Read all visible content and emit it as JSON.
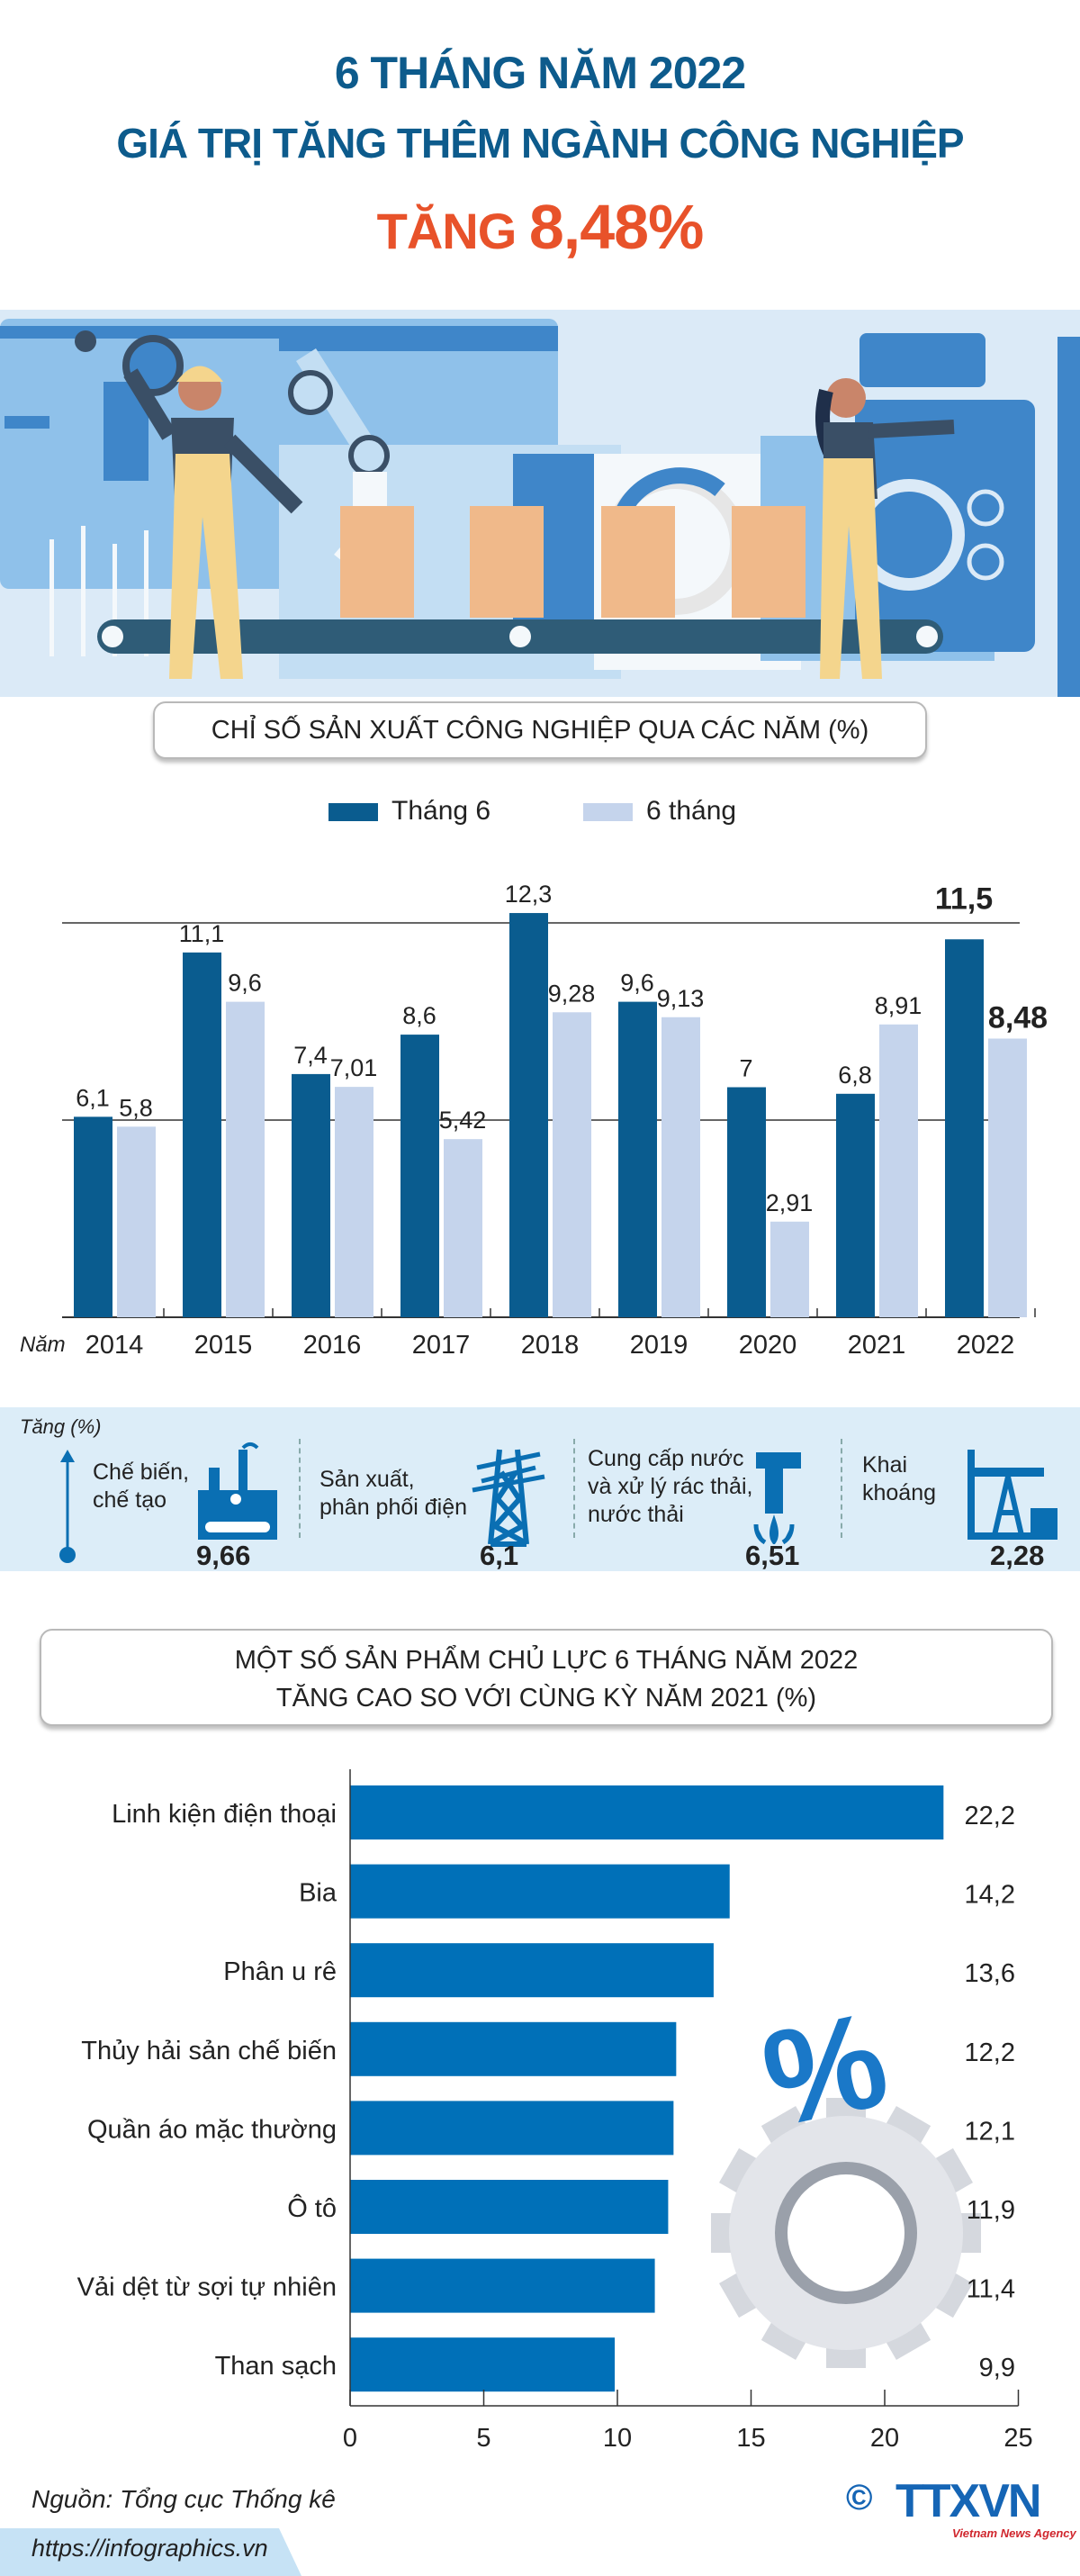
{
  "header": {
    "line1": "6 THÁNG NĂM 2022",
    "line2": "GIÁ TRỊ TĂNG THÊM NGÀNH CÔNG NGHIỆP",
    "line3_prefix": "TĂNG",
    "line3_value": "8,48%"
  },
  "colors": {
    "title_blue": "#0d5b8c",
    "highlight_red": "#e8522a",
    "bar_dark": "#0a5c8f",
    "bar_light": "#c5d4ec",
    "hbar": "#0070b8",
    "band": "#dcedf8"
  },
  "chart_data": [
    {
      "type": "bar",
      "title": "CHỈ SỐ SẢN XUẤT CÔNG NGHIỆP QUA CÁC NĂM (%)",
      "xlabel": "Năm",
      "categories": [
        "2014",
        "2015",
        "2016",
        "2017",
        "2018",
        "2019",
        "2020",
        "2021",
        "2022"
      ],
      "series": [
        {
          "name": "Tháng 6",
          "values": [
            6.1,
            11.1,
            7.4,
            8.6,
            12.3,
            9.6,
            7,
            6.8,
            11.5
          ],
          "labels": [
            "6,1",
            "11,1",
            "7,4",
            "8,6",
            "12,3",
            "9,6",
            "7",
            "6,8",
            "11,5"
          ]
        },
        {
          "name": "6 tháng",
          "values": [
            5.8,
            9.6,
            7.01,
            5.42,
            9.28,
            9.13,
            2.91,
            8.91,
            8.48
          ],
          "labels": [
            "5,8",
            "9,6",
            "7,01",
            "5,42",
            "9,28",
            "9,13",
            "2,91",
            "8,91",
            "8,48"
          ]
        }
      ],
      "ylim": [
        0,
        14.3
      ],
      "gridlines": [
        6,
        12
      ],
      "legend": "top-center"
    },
    {
      "type": "bar",
      "orientation": "horizontal",
      "title": "MỘT SỐ SẢN PHẨM CHỦ LỰC 6 THÁNG NĂM 2022",
      "subtitle": "TĂNG CAO SO VỚI CÙNG KỲ NĂM 2021 (%)",
      "categories": [
        "Linh kiện điện thoại",
        "Bia",
        "Phân u rê",
        "Thủy hải sản chế biến",
        "Quần áo mặc thường",
        "Ô tô",
        "Vải dệt từ sợi tự nhiên",
        "Than sạch"
      ],
      "values": [
        22.2,
        14.2,
        13.6,
        12.2,
        12.1,
        11.9,
        11.4,
        9.9
      ],
      "labels": [
        "22,2",
        "14,2",
        "13,6",
        "12,2",
        "12,1",
        "11,9",
        "11,4",
        "9,9"
      ],
      "xlim": [
        0,
        25
      ],
      "xticks": [
        "0",
        "5",
        "10",
        "15",
        "20",
        "25"
      ]
    }
  ],
  "sectors": {
    "axis_label": "Tăng (%)",
    "items": [
      {
        "line1": "Chế biến,",
        "line2": "chế tạo",
        "line3": "",
        "value": "9,66",
        "icon": "factory-icon"
      },
      {
        "line1": "Sản xuất,",
        "line2": "phân phối điện",
        "line3": "",
        "value": "6,1",
        "icon": "power-tower-icon"
      },
      {
        "line1": "Cung cấp nước",
        "line2": "và xử lý rác thải,",
        "line3": "nước thải",
        "value": "6,51",
        "icon": "water-tap-icon"
      },
      {
        "line1": "Khai",
        "line2": "khoáng",
        "line3": "",
        "value": "2,28",
        "icon": "oil-pump-icon"
      }
    ]
  },
  "footer": {
    "source": "Nguồn: Tổng cục Thống kê",
    "url": "https://infographics.vn",
    "logo_text": "TTXVN",
    "logo_sub": "Vietnam News Agency",
    "copyright": "©"
  }
}
